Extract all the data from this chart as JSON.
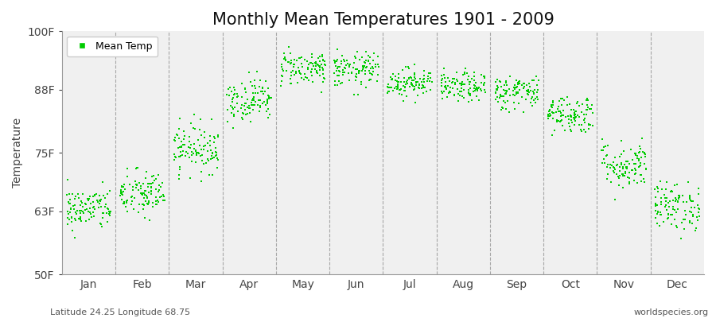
{
  "title": "Monthly Mean Temperatures 1901 - 2009",
  "ylabel": "Temperature",
  "yticks": [
    50,
    63,
    75,
    88,
    100
  ],
  "ytick_labels": [
    "50F",
    "63F",
    "75F",
    "88F",
    "100F"
  ],
  "ylim": [
    50,
    100
  ],
  "months": [
    "Jan",
    "Feb",
    "Mar",
    "Apr",
    "May",
    "Jun",
    "Jul",
    "Aug",
    "Sep",
    "Oct",
    "Nov",
    "Dec"
  ],
  "monthly_means": [
    63.5,
    66.5,
    76.0,
    86.0,
    92.5,
    92.0,
    89.5,
    88.5,
    87.5,
    83.0,
    72.5,
    64.0
  ],
  "monthly_stds": [
    2.2,
    2.5,
    2.5,
    2.2,
    1.8,
    1.8,
    1.5,
    1.5,
    1.8,
    2.0,
    2.5,
    2.5
  ],
  "n_years": 109,
  "dot_color": "#00cc00",
  "dot_size": 2.5,
  "background_color": "#f0f0f0",
  "outer_background": "#ffffff",
  "vline_color": "#888888",
  "title_fontsize": 15,
  "axis_fontsize": 10,
  "tick_fontsize": 10,
  "legend_label": "Mean Temp",
  "bottom_left_text": "Latitude 24.25 Longitude 68.75",
  "bottom_right_text": "worldspecies.org"
}
